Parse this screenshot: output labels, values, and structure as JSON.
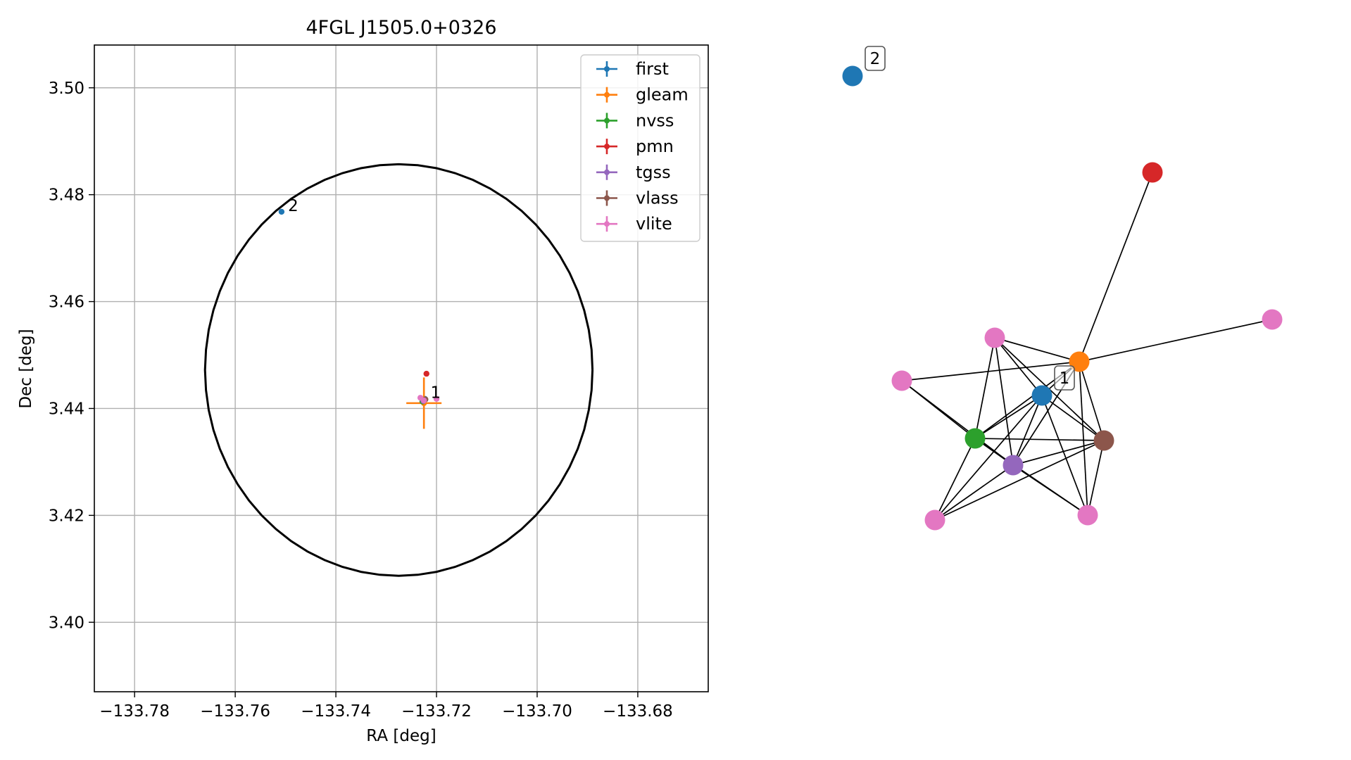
{
  "chart_data": [
    {
      "type": "scatter",
      "title": "4FGL J1505.0+0326",
      "xlabel": "RA [deg]",
      "ylabel": "Dec [deg]",
      "xlim": [
        -133.788,
        -133.666
      ],
      "ylim": [
        3.387,
        3.508
      ],
      "grid": true,
      "legend_position": "top-right",
      "x_ticks": [
        -133.78,
        -133.76,
        -133.74,
        -133.72,
        -133.7,
        -133.68
      ],
      "x_tick_labels": [
        "−133.78",
        "−133.76",
        "−133.74",
        "−133.72",
        "−133.70",
        "−133.68"
      ],
      "y_ticks": [
        3.4,
        3.42,
        3.44,
        3.46,
        3.48,
        3.5
      ],
      "y_tick_labels": [
        "3.40",
        "3.42",
        "3.44",
        "3.46",
        "3.48",
        "3.50"
      ],
      "circle": {
        "center_ra": -133.7275,
        "center_dec": 3.4472,
        "radius_deg": 0.0385
      },
      "series": [
        {
          "name": "first",
          "color": "#1f77b4",
          "points": [
            {
              "x": -133.7223,
              "y": 3.4418,
              "xerr": 0,
              "yerr": 0
            },
            {
              "x": -133.7508,
              "y": 3.4768,
              "xerr": 0,
              "yerr": 0
            }
          ]
        },
        {
          "name": "gleam",
          "color": "#ff7f0e",
          "points": [
            {
              "x": -133.7225,
              "y": 3.441,
              "xerr": 0.0035,
              "yerr": 0.0048
            }
          ]
        },
        {
          "name": "nvss",
          "color": "#2ca02c",
          "points": [
            {
              "x": -133.7228,
              "y": 3.4413,
              "xerr": 0,
              "yerr": 0
            }
          ]
        },
        {
          "name": "pmn",
          "color": "#d62728",
          "points": [
            {
              "x": -133.722,
              "y": 3.4465,
              "xerr": 0,
              "yerr": 0
            }
          ]
        },
        {
          "name": "tgss",
          "color": "#9467bd",
          "points": [
            {
              "x": -133.7226,
              "y": 3.4414,
              "xerr": 0,
              "yerr": 0
            }
          ]
        },
        {
          "name": "vlass",
          "color": "#8c564b",
          "points": [
            {
              "x": -133.7222,
              "y": 3.4417,
              "xerr": 0,
              "yerr": 0
            }
          ]
        },
        {
          "name": "vlite",
          "color": "#e377c2",
          "points": [
            {
              "x": -133.7232,
              "y": 3.442,
              "xerr": 0,
              "yerr": 0
            },
            {
              "x": -133.72,
              "y": 3.4418,
              "xerr": 0,
              "yerr": 0
            },
            {
              "x": -133.7225,
              "y": 3.4415,
              "xerr": 0,
              "yerr": 0
            }
          ]
        }
      ],
      "annotations": [
        {
          "text": "1",
          "x": -133.7212,
          "y": 3.443
        },
        {
          "text": "2",
          "x": -133.7495,
          "y": 3.478
        }
      ]
    },
    {
      "type": "network",
      "nodes": [
        {
          "id": "n2",
          "catalog": "first",
          "color": "#1f77b4",
          "label": "2"
        },
        {
          "id": "red",
          "catalog": "pmn",
          "color": "#d62728",
          "label": ""
        },
        {
          "id": "pinkR",
          "catalog": "vlite",
          "color": "#e377c2",
          "label": ""
        },
        {
          "id": "pinkT",
          "catalog": "vlite",
          "color": "#e377c2",
          "label": ""
        },
        {
          "id": "orange",
          "catalog": "gleam",
          "color": "#ff7f0e",
          "label": ""
        },
        {
          "id": "pinkL",
          "catalog": "vlite",
          "color": "#e377c2",
          "label": ""
        },
        {
          "id": "blue",
          "catalog": "first",
          "color": "#1f77b4",
          "label": "1"
        },
        {
          "id": "green",
          "catalog": "nvss",
          "color": "#2ca02c",
          "label": ""
        },
        {
          "id": "brown",
          "catalog": "vlass",
          "color": "#8c564b",
          "label": ""
        },
        {
          "id": "purple",
          "catalog": "tgss",
          "color": "#9467bd",
          "label": ""
        },
        {
          "id": "pinkBL",
          "catalog": "vlite",
          "color": "#e377c2",
          "label": ""
        },
        {
          "id": "pinkBR",
          "catalog": "vlite",
          "color": "#e377c2",
          "label": ""
        }
      ],
      "edges": [
        [
          "red",
          "orange"
        ],
        [
          "pinkR",
          "orange"
        ],
        [
          "pinkL",
          "orange"
        ],
        [
          "pinkL",
          "green"
        ],
        [
          "pinkL",
          "purple"
        ],
        [
          "pinkT",
          "orange"
        ],
        [
          "pinkT",
          "blue"
        ],
        [
          "pinkT",
          "green"
        ],
        [
          "pinkT",
          "brown"
        ],
        [
          "pinkT",
          "purple"
        ],
        [
          "orange",
          "blue"
        ],
        [
          "orange",
          "green"
        ],
        [
          "orange",
          "brown"
        ],
        [
          "orange",
          "purple"
        ],
        [
          "orange",
          "pinkBR"
        ],
        [
          "blue",
          "green"
        ],
        [
          "blue",
          "brown"
        ],
        [
          "blue",
          "purple"
        ],
        [
          "blue",
          "pinkBL"
        ],
        [
          "blue",
          "pinkBR"
        ],
        [
          "green",
          "brown"
        ],
        [
          "green",
          "purple"
        ],
        [
          "green",
          "pinkBL"
        ],
        [
          "green",
          "pinkBR"
        ],
        [
          "brown",
          "purple"
        ],
        [
          "brown",
          "pinkBR"
        ],
        [
          "purple",
          "pinkBL"
        ],
        [
          "purple",
          "pinkBR"
        ],
        [
          "pinkBL",
          "brown"
        ]
      ]
    }
  ]
}
